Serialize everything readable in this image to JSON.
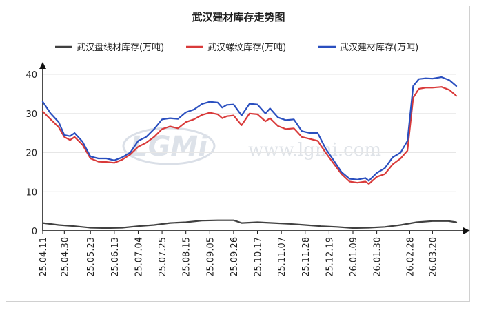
{
  "chart_data": {
    "type": "line",
    "title": "武汉建材库存走势图",
    "xlabel": "",
    "ylabel": "",
    "ylim": [
      0,
      40
    ],
    "yticks": [
      0,
      10,
      20,
      30,
      40
    ],
    "xlim": [
      "2025-04-11",
      "2026-04-10"
    ],
    "xtick_labels": [
      "25.04.11",
      "25.04.30",
      "25.05.23",
      "25.06.13",
      "25.07.04",
      "25.07.25",
      "25.08.15",
      "25.09.05",
      "25.09.26",
      "25.10.17",
      "25.11.07",
      "25.11.28",
      "25.12.19",
      "26.01.09",
      "26.01.30",
      "26.02.28",
      "26.03.20"
    ],
    "xtick_dates": [
      "2025-04-11",
      "2025-04-30",
      "2025-05-23",
      "2025-06-13",
      "2025-07-04",
      "2025-07-25",
      "2025-08-15",
      "2025-09-05",
      "2025-09-26",
      "2025-10-17",
      "2025-11-07",
      "2025-11-28",
      "2025-12-19",
      "2026-01-09",
      "2026-01-30",
      "2026-02-28",
      "2026-03-20"
    ],
    "grid": "horizontal",
    "legend_position": "top",
    "series": [
      {
        "name": "武汉盘线材库存(万吨)",
        "color": "#404040",
        "points": [
          [
            "2025-04-11",
            2.0
          ],
          [
            "2025-04-25",
            1.5
          ],
          [
            "2025-05-09",
            1.2
          ],
          [
            "2025-05-23",
            0.8
          ],
          [
            "2025-06-06",
            0.7
          ],
          [
            "2025-06-20",
            0.8
          ],
          [
            "2025-07-04",
            1.2
          ],
          [
            "2025-07-18",
            1.5
          ],
          [
            "2025-08-01",
            2.0
          ],
          [
            "2025-08-15",
            2.2
          ],
          [
            "2025-08-29",
            2.6
          ],
          [
            "2025-09-12",
            2.7
          ],
          [
            "2025-09-26",
            2.7
          ],
          [
            "2025-10-03",
            2.0
          ],
          [
            "2025-10-17",
            2.2
          ],
          [
            "2025-10-31",
            2.0
          ],
          [
            "2025-11-14",
            1.8
          ],
          [
            "2025-11-28",
            1.5
          ],
          [
            "2025-12-12",
            1.2
          ],
          [
            "2025-12-26",
            1.0
          ],
          [
            "2026-01-09",
            0.7
          ],
          [
            "2026-01-23",
            0.8
          ],
          [
            "2026-02-06",
            1.0
          ],
          [
            "2026-02-20",
            1.5
          ],
          [
            "2026-03-06",
            2.2
          ],
          [
            "2026-03-20",
            2.5
          ],
          [
            "2026-04-03",
            2.5
          ],
          [
            "2026-04-10",
            2.2
          ]
        ]
      },
      {
        "name": "武汉螺纹库存(万吨)",
        "color": "#d93a3a",
        "points": [
          [
            "2025-04-11",
            30.5
          ],
          [
            "2025-04-18",
            28.5
          ],
          [
            "2025-04-25",
            26.5
          ],
          [
            "2025-04-30",
            24.0
          ],
          [
            "2025-05-05",
            23.2
          ],
          [
            "2025-05-09",
            24.0
          ],
          [
            "2025-05-16",
            22.0
          ],
          [
            "2025-05-23",
            18.5
          ],
          [
            "2025-05-30",
            17.7
          ],
          [
            "2025-06-06",
            17.6
          ],
          [
            "2025-06-13",
            17.4
          ],
          [
            "2025-06-20",
            18.2
          ],
          [
            "2025-06-27",
            19.5
          ],
          [
            "2025-07-04",
            21.5
          ],
          [
            "2025-07-11",
            22.5
          ],
          [
            "2025-07-18",
            24.0
          ],
          [
            "2025-07-25",
            26.0
          ],
          [
            "2025-08-01",
            26.7
          ],
          [
            "2025-08-08",
            26.2
          ],
          [
            "2025-08-15",
            27.8
          ],
          [
            "2025-08-22",
            28.5
          ],
          [
            "2025-08-29",
            29.6
          ],
          [
            "2025-09-05",
            30.2
          ],
          [
            "2025-09-12",
            29.8
          ],
          [
            "2025-09-16",
            28.8
          ],
          [
            "2025-09-20",
            29.3
          ],
          [
            "2025-09-26",
            29.5
          ],
          [
            "2025-10-03",
            27.0
          ],
          [
            "2025-10-10",
            30.0
          ],
          [
            "2025-10-17",
            29.8
          ],
          [
            "2025-10-24",
            28.0
          ],
          [
            "2025-10-28",
            28.8
          ],
          [
            "2025-11-04",
            26.8
          ],
          [
            "2025-11-11",
            26.0
          ],
          [
            "2025-11-18",
            26.2
          ],
          [
            "2025-11-25",
            24.0
          ],
          [
            "2025-12-02",
            23.5
          ],
          [
            "2025-12-09",
            23.0
          ],
          [
            "2025-12-16",
            20.0
          ],
          [
            "2025-12-23",
            17.2
          ],
          [
            "2025-12-30",
            14.5
          ],
          [
            "2026-01-06",
            12.6
          ],
          [
            "2026-01-13",
            12.3
          ],
          [
            "2026-01-20",
            12.6
          ],
          [
            "2026-01-23",
            12.0
          ],
          [
            "2026-01-30",
            13.8
          ],
          [
            "2026-02-06",
            14.5
          ],
          [
            "2026-02-13",
            17.0
          ],
          [
            "2026-02-20",
            18.5
          ],
          [
            "2026-02-26",
            20.5
          ],
          [
            "2026-03-03",
            34.0
          ],
          [
            "2026-03-08",
            36.3
          ],
          [
            "2026-03-14",
            36.6
          ],
          [
            "2026-03-20",
            36.6
          ],
          [
            "2026-03-28",
            36.8
          ],
          [
            "2026-04-04",
            36.0
          ],
          [
            "2026-04-10",
            34.5
          ]
        ]
      },
      {
        "name": "武汉建材库存(万吨)",
        "color": "#2a4fbf",
        "points": [
          [
            "2025-04-11",
            33.0
          ],
          [
            "2025-04-18",
            30.0
          ],
          [
            "2025-04-25",
            27.8
          ],
          [
            "2025-04-30",
            24.5
          ],
          [
            "2025-05-05",
            24.2
          ],
          [
            "2025-05-09",
            25.0
          ],
          [
            "2025-05-16",
            22.8
          ],
          [
            "2025-05-23",
            19.0
          ],
          [
            "2025-05-30",
            18.5
          ],
          [
            "2025-06-06",
            18.5
          ],
          [
            "2025-06-13",
            18.0
          ],
          [
            "2025-06-20",
            18.8
          ],
          [
            "2025-06-27",
            20.0
          ],
          [
            "2025-07-04",
            23.0
          ],
          [
            "2025-07-11",
            24.0
          ],
          [
            "2025-07-18",
            26.0
          ],
          [
            "2025-07-25",
            28.5
          ],
          [
            "2025-08-01",
            28.8
          ],
          [
            "2025-08-08",
            28.6
          ],
          [
            "2025-08-15",
            30.3
          ],
          [
            "2025-08-22",
            31.0
          ],
          [
            "2025-08-29",
            32.4
          ],
          [
            "2025-09-05",
            33.0
          ],
          [
            "2025-09-12",
            32.8
          ],
          [
            "2025-09-16",
            31.5
          ],
          [
            "2025-09-20",
            32.2
          ],
          [
            "2025-09-26",
            32.3
          ],
          [
            "2025-10-03",
            29.5
          ],
          [
            "2025-10-10",
            32.5
          ],
          [
            "2025-10-17",
            32.3
          ],
          [
            "2025-10-24",
            30.0
          ],
          [
            "2025-10-28",
            31.3
          ],
          [
            "2025-11-04",
            29.0
          ],
          [
            "2025-11-11",
            28.3
          ],
          [
            "2025-11-18",
            28.5
          ],
          [
            "2025-11-25",
            25.5
          ],
          [
            "2025-12-02",
            25.0
          ],
          [
            "2025-12-09",
            25.0
          ],
          [
            "2025-12-16",
            21.0
          ],
          [
            "2025-12-23",
            18.0
          ],
          [
            "2025-12-30",
            15.0
          ],
          [
            "2026-01-06",
            13.3
          ],
          [
            "2026-01-13",
            13.1
          ],
          [
            "2026-01-20",
            13.5
          ],
          [
            "2026-01-23",
            12.8
          ],
          [
            "2026-01-30",
            14.8
          ],
          [
            "2026-02-06",
            16.0
          ],
          [
            "2026-02-13",
            18.8
          ],
          [
            "2026-02-20",
            20.0
          ],
          [
            "2026-02-26",
            23.0
          ],
          [
            "2026-03-03",
            37.0
          ],
          [
            "2026-03-08",
            38.8
          ],
          [
            "2026-03-14",
            39.0
          ],
          [
            "2026-03-20",
            38.9
          ],
          [
            "2026-03-28",
            39.3
          ],
          [
            "2026-04-04",
            38.5
          ],
          [
            "2026-04-10",
            37.0
          ]
        ]
      }
    ]
  },
  "watermark": {
    "logo_text": "LGMi",
    "url_text": "www.lgmi.com"
  }
}
